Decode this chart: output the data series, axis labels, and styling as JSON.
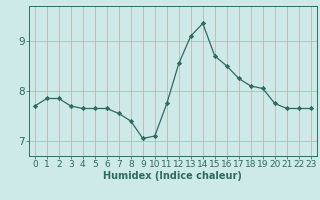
{
  "x": [
    0,
    1,
    2,
    3,
    4,
    5,
    6,
    7,
    8,
    9,
    10,
    11,
    12,
    13,
    14,
    15,
    16,
    17,
    18,
    19,
    20,
    21,
    22,
    23
  ],
  "y": [
    7.7,
    7.85,
    7.85,
    7.7,
    7.65,
    7.65,
    7.65,
    7.55,
    7.4,
    7.05,
    7.1,
    7.75,
    8.55,
    9.1,
    9.35,
    8.7,
    8.5,
    8.25,
    8.1,
    8.05,
    7.75,
    7.65,
    7.65,
    7.65
  ],
  "line_color": "#2e6b5e",
  "marker": "D",
  "marker_size": 2.2,
  "bg_color": "#ceeae8",
  "grid_color": "#c0aaaa",
  "axis_color": "#2e6b5e",
  "xlabel": "Humidex (Indice chaleur)",
  "ylim": [
    6.7,
    9.7
  ],
  "yticks": [
    7,
    8,
    9
  ],
  "xticks": [
    0,
    1,
    2,
    3,
    4,
    5,
    6,
    7,
    8,
    9,
    10,
    11,
    12,
    13,
    14,
    15,
    16,
    17,
    18,
    19,
    20,
    21,
    22,
    23
  ],
  "xlabel_fontsize": 7,
  "tick_fontsize": 6.5,
  "ytick_fontsize": 7.5,
  "linewidth": 0.9
}
